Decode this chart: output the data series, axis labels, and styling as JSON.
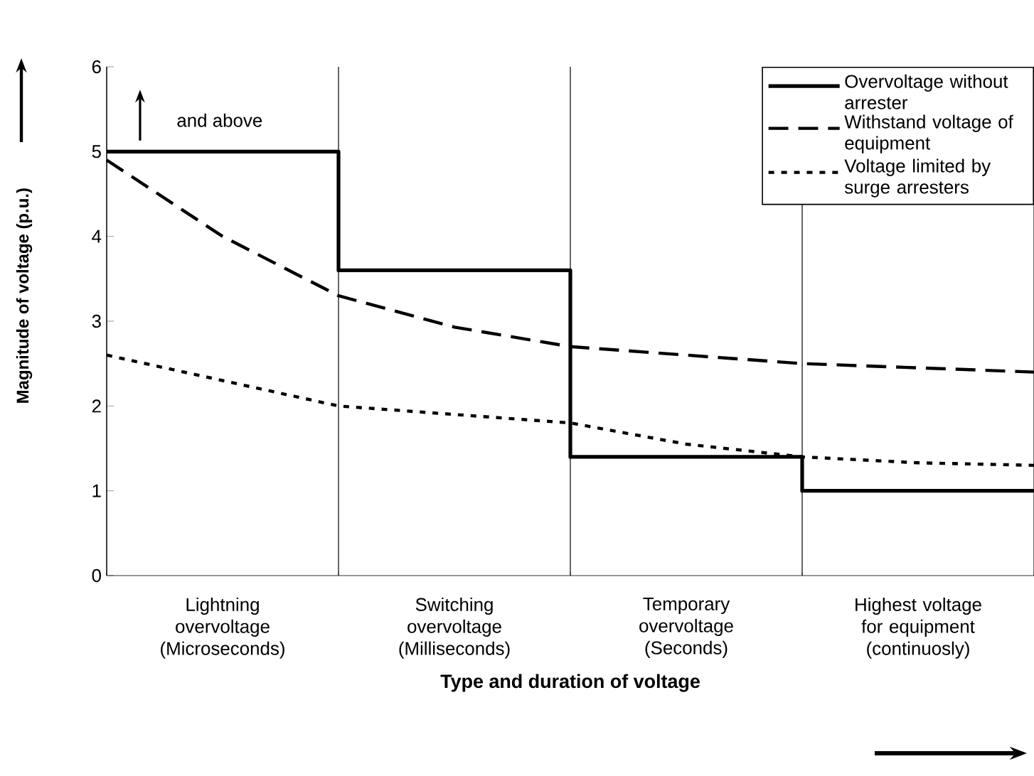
{
  "chart_data": {
    "type": "line",
    "xlabel": "Type and duration of voltage",
    "ylabel": "Magnitude of voltage (p.u.)",
    "categories": [
      null,
      "Lightning overvoltage (Microseconds)",
      null,
      "Switching overvoltage (Milliseconds)",
      null,
      "Temporary overvoltage (Seconds)",
      null,
      "Highest voltage for equipment (continuosly)",
      null
    ],
    "ylim": [
      0,
      6
    ],
    "yticks": [
      0,
      1,
      2,
      3,
      4,
      5,
      6
    ],
    "grid": "x",
    "legend": "top right",
    "marker": "none",
    "annotations": [
      "and above"
    ],
    "series": [
      {
        "name": "Overvoltage without arrester",
        "type": "step",
        "color": "#000000",
        "line_style": "solid",
        "values": [
          5,
          5,
          3.6,
          3.6,
          1.4,
          1.4,
          1,
          1,
          1
        ]
      },
      {
        "name": "Withstand voltage of equipment",
        "color": "#000000",
        "line_style": "dashed",
        "values": [
          4.9,
          4.0,
          3.3,
          2.93,
          2.7,
          2.6,
          2.5,
          2.45,
          2.4
        ]
      },
      {
        "name": "Voltage limited by surge arresters",
        "color": "#000000",
        "line_style": "dotted",
        "values": [
          2.6,
          2.3,
          2.0,
          1.9,
          1.8,
          1.55,
          1.4,
          1.33,
          1.3
        ]
      }
    ]
  }
}
